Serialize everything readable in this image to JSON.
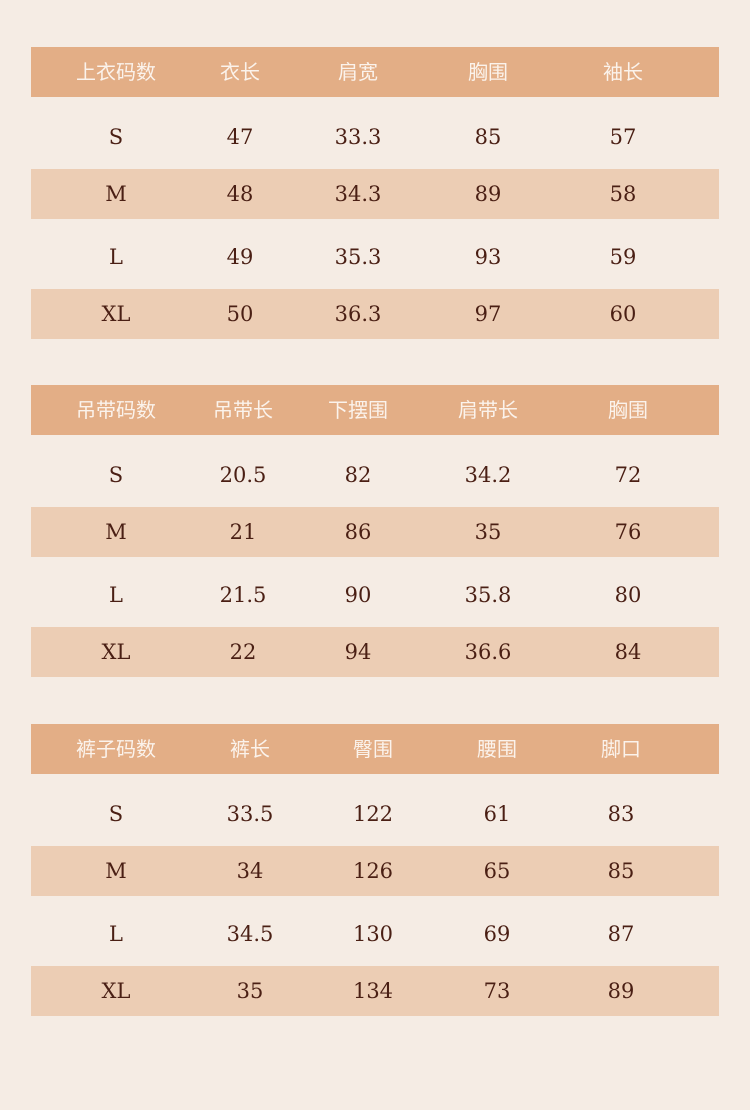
{
  "colors": {
    "background": "#f5ece4",
    "header": "#e3ae86",
    "shaded_row": "#eccdb4",
    "text": "#4a1f14"
  },
  "tables": [
    {
      "headers": [
        "上衣码数",
        "衣长",
        "肩宽",
        "胸围",
        "袖长"
      ],
      "rows": [
        [
          "S",
          "47",
          "33.3",
          "85",
          "57"
        ],
        [
          "M",
          "48",
          "34.3",
          "89",
          "58"
        ],
        [
          "L",
          "49",
          "35.3",
          "93",
          "59"
        ],
        [
          "XL",
          "50",
          "36.3",
          "97",
          "60"
        ]
      ]
    },
    {
      "headers": [
        "吊带码数",
        "吊带长",
        "下摆围",
        "肩带长",
        "胸围"
      ],
      "rows": [
        [
          "S",
          "20.5",
          "82",
          "34.2",
          "72"
        ],
        [
          "M",
          "21",
          "86",
          "35",
          "76"
        ],
        [
          "L",
          "21.5",
          "90",
          "35.8",
          "80"
        ],
        [
          "XL",
          "22",
          "94",
          "36.6",
          "84"
        ]
      ]
    },
    {
      "headers": [
        "裤子码数",
        "裤长",
        "臀围",
        "腰围",
        "脚口"
      ],
      "rows": [
        [
          "S",
          "33.5",
          "122",
          "61",
          "83"
        ],
        [
          "M",
          "34",
          "126",
          "65",
          "85"
        ],
        [
          "L",
          "34.5",
          "130",
          "69",
          "87"
        ],
        [
          "XL",
          "35",
          "134",
          "73",
          "89"
        ]
      ]
    }
  ]
}
